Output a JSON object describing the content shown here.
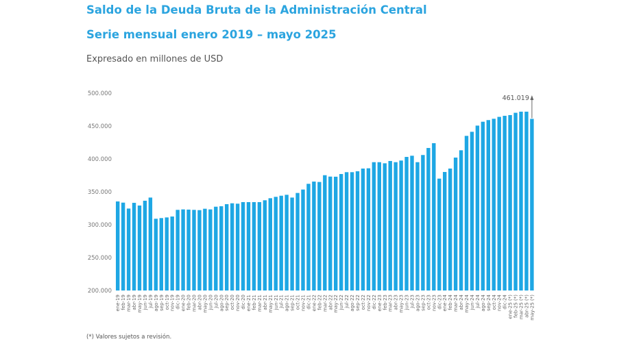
{
  "chart_data": {
    "type": "bar",
    "title": "Saldo de la Deuda Bruta de la Administración Central",
    "subtitle": "Serie mensual enero 2019 – mayo 2025",
    "ylabel": "Expresado en millones de USD",
    "xlabel": "",
    "footnote": "(*) Valores sujetos a revisión.",
    "ylim": [
      200000,
      500000
    ],
    "yticks": [
      "200.000",
      "250.000",
      "300.000",
      "350.000",
      "400.000",
      "450.000",
      "500.000"
    ],
    "ytick_values": [
      200000,
      250000,
      300000,
      350000,
      400000,
      450000,
      500000
    ],
    "grid": false,
    "bar_color": "#1ea7e4",
    "annotation": {
      "label": "461.019",
      "category": "may-25 (*)",
      "value": 461019,
      "icon": "arrow-up-icon"
    },
    "categories": [
      "ene-19",
      "feb-19",
      "mar-19",
      "abr-19",
      "may-19",
      "jun-19",
      "jul-19",
      "ago-19",
      "sep-19",
      "oct-19",
      "nov-19",
      "dic-19",
      "ene-20",
      "feb-20",
      "mar-20",
      "abr-20",
      "may-20",
      "jun-20",
      "jul-20",
      "ago-20",
      "sep-20",
      "oct-20",
      "nov-20",
      "dic-20",
      "ene-21",
      "feb-21",
      "mar-21",
      "abr-21",
      "may-21",
      "jun-21",
      "jul-21",
      "ago-21",
      "sep-21",
      "oct-21",
      "nov-21",
      "dic-21",
      "ene-22",
      "feb-22",
      "mar-22",
      "abr-22",
      "may-22",
      "jun-22",
      "jul-22",
      "ago-22",
      "sep-22",
      "oct-22",
      "nov-22",
      "dic-22",
      "ene-23",
      "feb-23",
      "mar-23",
      "abr-23",
      "may-23",
      "jun-23",
      "jul-23",
      "ago-23",
      "sep-23",
      "oct-23",
      "nov-23",
      "dic-23",
      "ene-24",
      "feb-24",
      "mar-24",
      "abr-24",
      "may-24",
      "jun-24",
      "jul-24",
      "ago-24",
      "sep-24",
      "oct-24",
      "nov-24",
      "dic-24",
      "ene-25 (*)",
      "feb-25 (*)",
      "mar-25 (*)",
      "abr-25 (*)",
      "may-25 (*)"
    ],
    "values": [
      335400,
      333600,
      324600,
      333300,
      329200,
      336500,
      341300,
      309100,
      310100,
      311100,
      312500,
      322600,
      323300,
      323000,
      322600,
      322200,
      324300,
      323300,
      327400,
      328100,
      331300,
      332600,
      332000,
      334400,
      334400,
      334400,
      334400,
      337200,
      340300,
      342400,
      344100,
      345500,
      341300,
      348300,
      353500,
      362200,
      365600,
      365000,
      375300,
      373200,
      373000,
      377100,
      379900,
      379900,
      381300,
      385400,
      385800,
      395100,
      395100,
      393400,
      396900,
      395100,
      397600,
      403100,
      404900,
      395100,
      406000,
      416700,
      424000,
      370100,
      380200,
      385400,
      402100,
      413200,
      435100,
      441300,
      450700,
      456600,
      459100,
      461100,
      464000,
      465600,
      466700,
      470200,
      471900,
      471900,
      461019
    ]
  }
}
